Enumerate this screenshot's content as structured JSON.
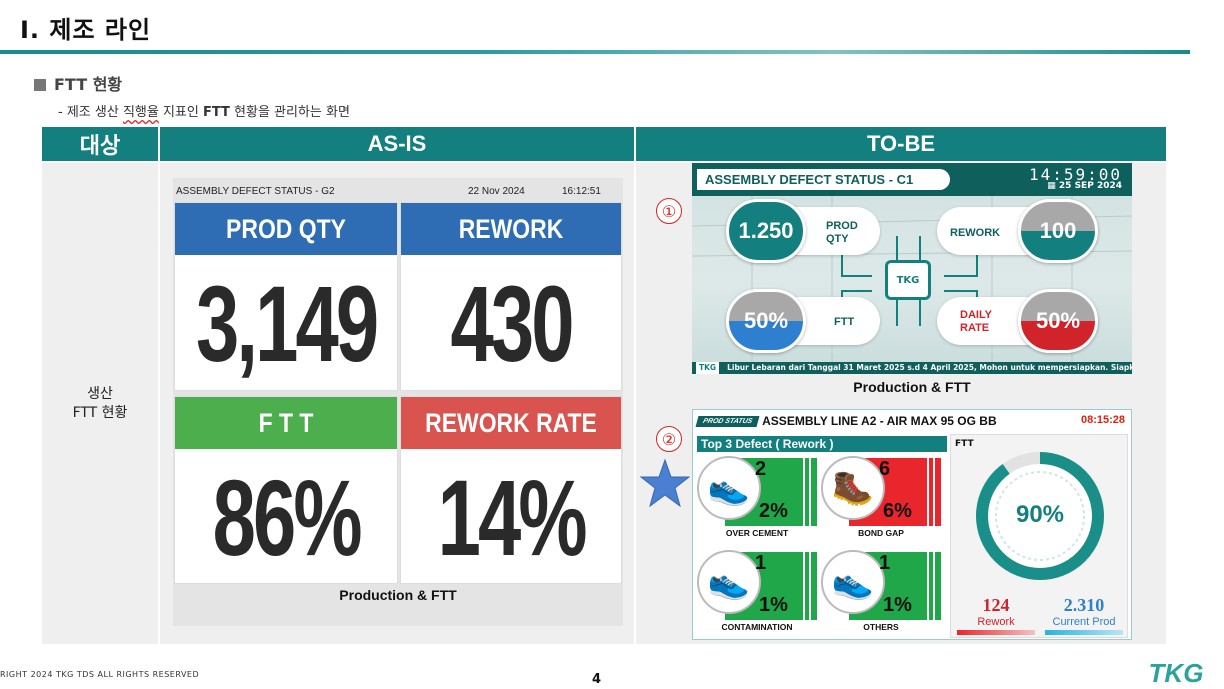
{
  "slide": {
    "title": "Ⅰ. 제조 라인",
    "section": "FTT 현황",
    "subtitle_pre": "- 제조 생산 ",
    "subtitle_underlined": "직행율",
    "subtitle_mid": " 지표인 ",
    "subtitle_bold": "FTT",
    "subtitle_post": " 현황을 관리하는 화면",
    "page_number": "4",
    "copyright": "RIGHT  2024  TKG  TDS  ALL  RIGHTS  RESERVED",
    "logo_text": "TKG"
  },
  "table": {
    "headers": [
      "대상",
      "AS-IS",
      "TO-BE"
    ],
    "target_line1": "생산",
    "target_line2": "FTT 현황"
  },
  "asis": {
    "screen_title": "ASSEMBLY DEFECT STATUS - G2",
    "date": "22 Nov 2024",
    "time": "16:12:51",
    "tiles": [
      {
        "label": "PROD QTY",
        "value": "3,149",
        "color": "#2e6db4"
      },
      {
        "label": "REWORK",
        "value": "430",
        "color": "#2e6db4"
      },
      {
        "label": "F T T",
        "value": "86%",
        "color": "#4cae4c"
      },
      {
        "label": "REWORK RATE",
        "value": "14%",
        "color": "#d9534f"
      }
    ],
    "caption": "Production & FTT"
  },
  "tobe1": {
    "marker": "①",
    "title": "ASSEMBLY DEFECT STATUS - C1",
    "clock": "14:59:00",
    "date": "25 SEP 2024",
    "prod_qty_value": "1.250",
    "prod_qty_label1": "PROD",
    "prod_qty_label2": "QTY",
    "rework_label": "REWORK",
    "rework_value": "100",
    "ftt_value": "50%",
    "ftt_label": "FTT",
    "daily_rate_label1": "DAILY",
    "daily_rate_label2": "RATE",
    "daily_rate_value": "50%",
    "chip": "TKG",
    "ticker_tag": "TKG",
    "ticker": "Libur Lebaran dari Tanggal 31 Maret 2025 s.d 4 April 2025, Mohon untuk mempersiapkan. Siapkan do",
    "caption": "Production & FTT",
    "colors": {
      "teal": "#13807f",
      "blue": "#2e7fd0",
      "red": "#d0232a",
      "grey": "#a8a8a8"
    }
  },
  "tobe2": {
    "marker": "②",
    "badge": "PROD STATUS",
    "title": "ASSEMBLY LINE A2 - AIR MAX 95 OG BB",
    "time": "08:15:28",
    "top3_label": "Top 3 Defect ( Rework )",
    "defects": [
      {
        "name": "OVER CEMENT",
        "count": "2",
        "pct": "2%",
        "color": "green"
      },
      {
        "name": "BOND GAP",
        "count": "6",
        "pct": "6%",
        "color": "red"
      },
      {
        "name": "CONTAMINATION",
        "count": "1",
        "pct": "1%",
        "color": "green"
      },
      {
        "name": "OTHERS",
        "count": "1",
        "pct": "1%",
        "color": "green"
      }
    ],
    "ftt_label": "FTT",
    "ftt_value": "90%",
    "ftt_fraction": 0.9,
    "rework_value": "124",
    "rework_label": "Rework",
    "current_prod_value": "2.310",
    "current_prod_label": "Current Prod"
  },
  "icons": [
    "star-icon",
    "shoe-icon",
    "chip-icon",
    "calendar-icon"
  ]
}
